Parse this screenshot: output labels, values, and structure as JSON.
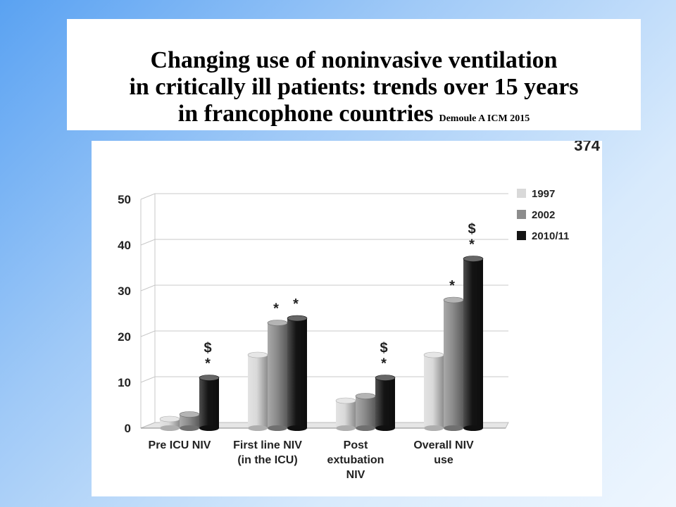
{
  "slide": {
    "title_line_1": "Changing use of noninvasive ventilation",
    "title_line_2": "in critically ill patients: trends over 15 years",
    "title_line_3": "in francophone countries",
    "citation": "Demoule A ICM 2015",
    "corner_text": "374"
  },
  "chart_data": {
    "type": "bar",
    "title": "",
    "xlabel": "",
    "ylabel": "",
    "ylim": [
      0,
      50
    ],
    "yticks": [
      "0",
      "10",
      "20",
      "30",
      "40",
      "50"
    ],
    "categories": [
      [
        "Pre ICU NIV"
      ],
      [
        "First line NIV",
        "(in the ICU)"
      ],
      [
        "Post",
        "extubation",
        "NIV"
      ],
      [
        "Overall NIV",
        "use"
      ]
    ],
    "series": [
      {
        "name": "1997",
        "color": "#d9d9d9",
        "values": [
          2,
          16,
          6,
          16
        ]
      },
      {
        "name": "2002",
        "color": "#8c8c8c",
        "values": [
          3,
          23,
          7,
          28
        ]
      },
      {
        "name": "2010/11",
        "color": "#141414",
        "values": [
          11,
          24,
          11,
          37
        ]
      }
    ],
    "annotations": [
      {
        "category": 0,
        "series": 2,
        "lines": [
          "$",
          "*"
        ]
      },
      {
        "category": 1,
        "series": 1,
        "lines": [
          "*"
        ]
      },
      {
        "category": 1,
        "series": 2,
        "lines": [
          "*"
        ]
      },
      {
        "category": 2,
        "series": 2,
        "lines": [
          "$",
          "*"
        ]
      },
      {
        "category": 3,
        "series": 1,
        "lines": [
          "*"
        ]
      },
      {
        "category": 3,
        "series": 2,
        "lines": [
          "$",
          "*"
        ]
      }
    ],
    "legend_position": "top-right",
    "grid": true
  }
}
